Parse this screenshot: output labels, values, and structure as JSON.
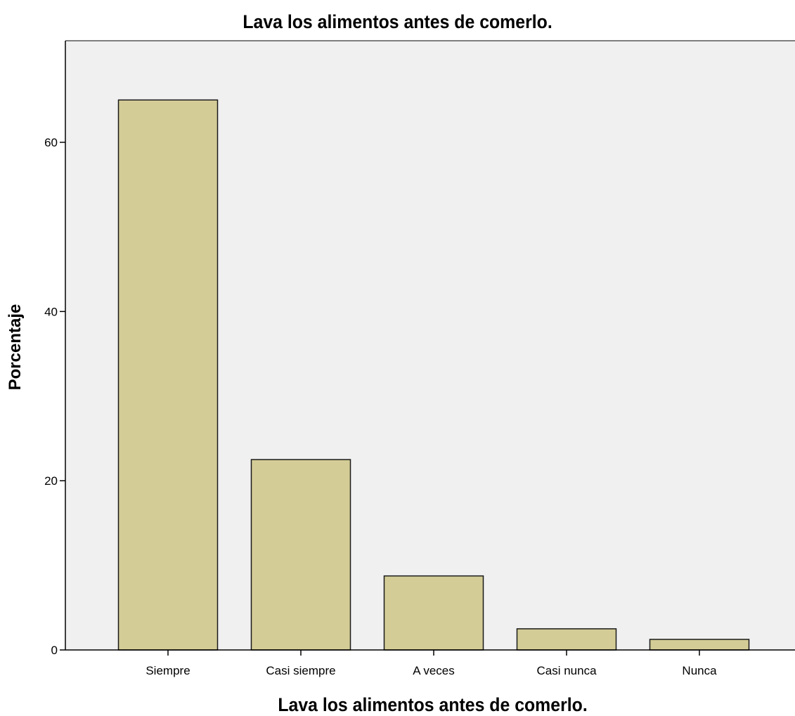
{
  "chart_data": {
    "type": "bar",
    "title": "Lava los alimentos antes de comerlo.",
    "xlabel": "Lava los alimentos antes de comerlo.",
    "ylabel": "Porcentaje",
    "categories": [
      "Siempre",
      "Casi siempre",
      "A veces",
      "Casi nunca",
      "Nunca"
    ],
    "values": [
      65.0,
      22.5,
      8.75,
      2.5,
      1.25
    ],
    "ylim": [
      0,
      72
    ],
    "yticks": [
      0,
      20,
      40,
      60
    ],
    "grid": false,
    "colors": {
      "bar_fill": "#d3cc96",
      "bar_stroke": "#1a1a1a",
      "plot_background": "#f0f0f0",
      "axis": "#000000"
    }
  }
}
